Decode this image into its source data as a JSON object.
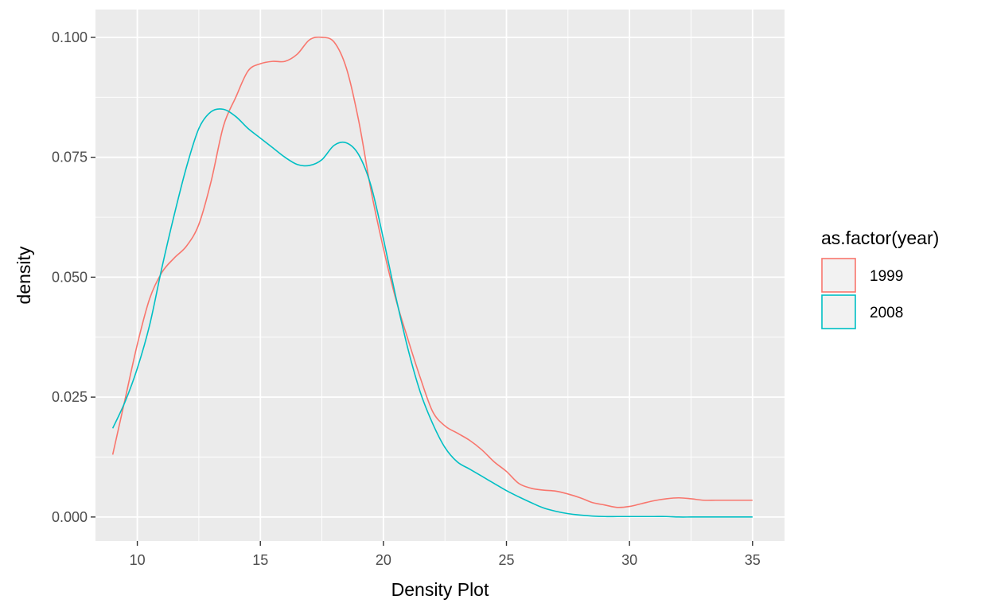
{
  "chart_data": {
    "type": "line",
    "title": "",
    "xlabel": "Density Plot",
    "ylabel": "density",
    "xlim": [
      8.3,
      36.3
    ],
    "ylim": [
      -0.005,
      0.1058
    ],
    "x_ticks": [
      10,
      15,
      20,
      25,
      30,
      35
    ],
    "x_tick_labels": [
      "10",
      "15",
      "20",
      "25",
      "30",
      "35"
    ],
    "y_ticks": [
      0,
      0.025,
      0.05,
      0.075,
      0.1
    ],
    "y_tick_labels": [
      "0.000",
      "0.025",
      "0.050",
      "0.075",
      "0.100"
    ],
    "grid": true,
    "legend": {
      "title": "as.factor(year)",
      "position": "right"
    },
    "series": [
      {
        "name": "1999",
        "color": "#F8766D",
        "x": [
          9,
          9.5,
          10,
          10.5,
          11,
          11.5,
          12,
          12.5,
          13,
          13.5,
          14,
          14.5,
          15,
          15.5,
          16,
          16.5,
          17,
          17.5,
          18,
          18.5,
          19,
          19.5,
          20,
          20.5,
          21,
          21.5,
          22,
          22.5,
          23,
          23.5,
          24,
          24.5,
          25,
          25.5,
          26,
          26.5,
          27,
          27.5,
          28,
          28.5,
          29,
          29.5,
          30,
          30.5,
          31,
          31.5,
          32,
          32.5,
          33,
          33.5,
          34,
          34.5,
          35
        ],
        "y": [
          0.013,
          0.0245,
          0.036,
          0.0455,
          0.051,
          0.054,
          0.0565,
          0.061,
          0.07,
          0.0815,
          0.0875,
          0.093,
          0.0945,
          0.095,
          0.095,
          0.0965,
          0.0995,
          0.1,
          0.099,
          0.0935,
          0.0825,
          0.068,
          0.056,
          0.0455,
          0.037,
          0.029,
          0.022,
          0.019,
          0.0175,
          0.016,
          0.014,
          0.0115,
          0.0095,
          0.007,
          0.006,
          0.0056,
          0.0054,
          0.0048,
          0.004,
          0.003,
          0.0025,
          0.002,
          0.0022,
          0.0028,
          0.0034,
          0.0038,
          0.004,
          0.0038,
          0.0035,
          0.0035,
          0.0035,
          0.0035,
          0.0035
        ]
      },
      {
        "name": "2008",
        "color": "#00BFC4",
        "x": [
          9,
          9.5,
          10,
          10.5,
          11,
          11.5,
          12,
          12.5,
          13,
          13.5,
          14,
          14.5,
          15,
          15.5,
          16,
          16.5,
          17,
          17.5,
          18,
          18.5,
          19,
          19.5,
          20,
          20.5,
          21,
          21.5,
          22,
          22.5,
          23,
          23.5,
          24,
          24.5,
          25,
          25.5,
          26,
          26.5,
          27,
          27.5,
          28,
          28.5,
          29,
          29.5,
          30,
          30.5,
          31,
          31.5,
          32,
          32.5,
          33,
          33.5,
          34,
          34.5,
          35
        ],
        "y": [
          0.0185,
          0.024,
          0.031,
          0.04,
          0.052,
          0.063,
          0.073,
          0.081,
          0.0845,
          0.085,
          0.0835,
          0.081,
          0.079,
          0.077,
          0.075,
          0.0735,
          0.0733,
          0.0745,
          0.0775,
          0.078,
          0.0755,
          0.069,
          0.058,
          0.046,
          0.035,
          0.026,
          0.0195,
          0.0145,
          0.0115,
          0.01,
          0.0085,
          0.007,
          0.0055,
          0.0042,
          0.003,
          0.0019,
          0.0012,
          0.0007,
          0.0004,
          0.0002,
          0.0001,
          0.0001,
          0.0001,
          0.0001,
          0.0001,
          0.0001,
          0.0,
          0.0,
          0.0,
          0.0,
          0.0,
          0.0,
          0.0
        ]
      }
    ]
  }
}
